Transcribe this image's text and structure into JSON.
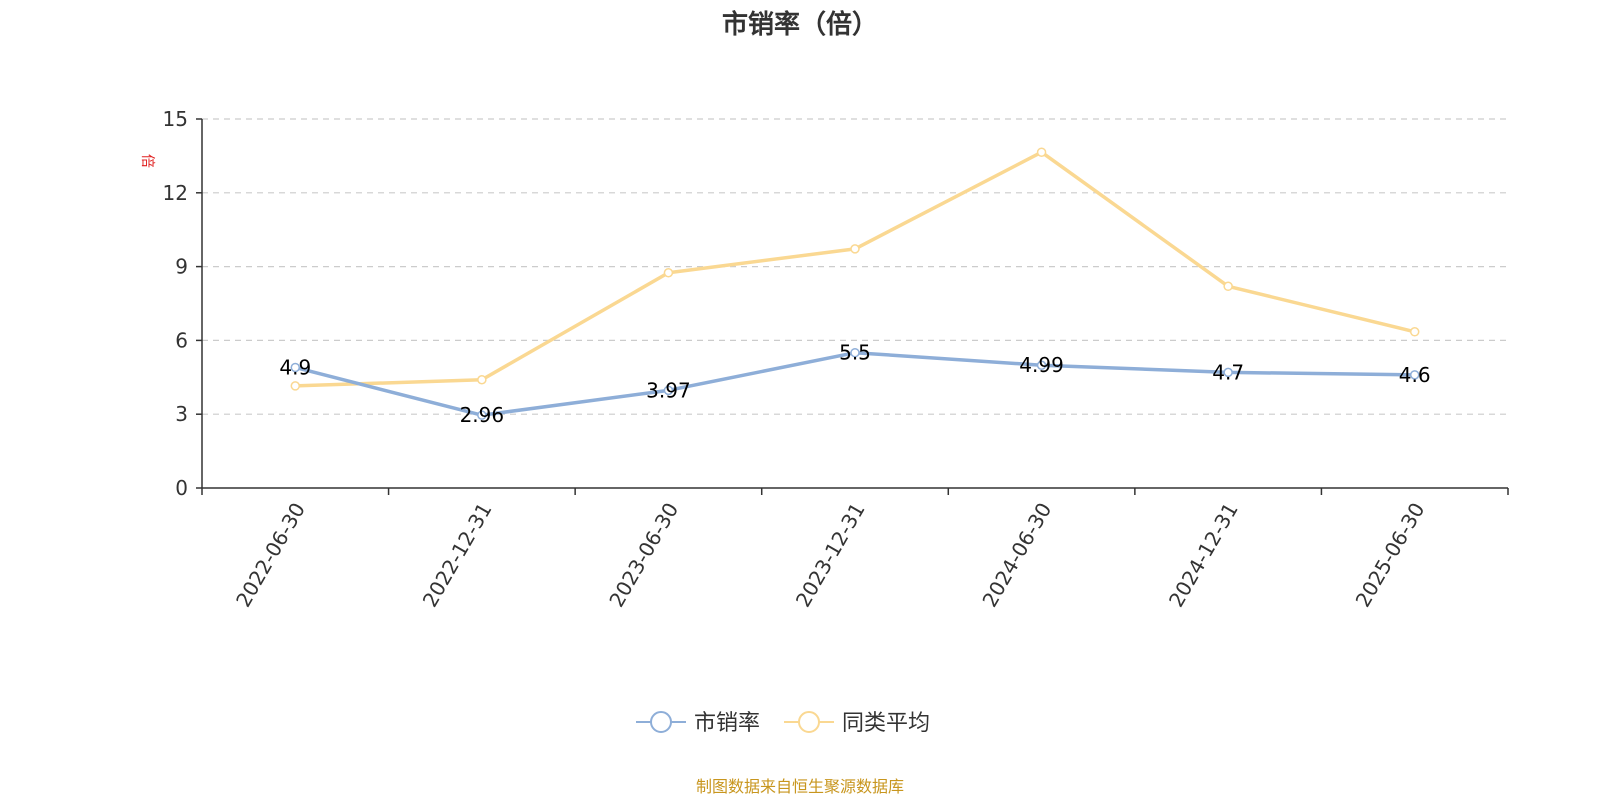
{
  "chart_data": {
    "type": "line",
    "title": "市销率（倍）",
    "ylabel": "倍",
    "xlabel": "",
    "categories": [
      "2022-06-30",
      "2022-12-31",
      "2023-06-30",
      "2023-12-31",
      "2024-06-30",
      "2024-12-31",
      "2025-06-30"
    ],
    "ylim": [
      0,
      15
    ],
    "yticks": [
      0,
      3,
      6,
      9,
      12,
      15
    ],
    "grid": true,
    "legend_position": "bottom-center",
    "series": [
      {
        "name": "市销率",
        "values": [
          4.9,
          2.96,
          3.97,
          5.5,
          4.99,
          4.7,
          4.6
        ],
        "labels": [
          "4.9",
          "2.96",
          "3.97",
          "5.5",
          "4.99",
          "4.7",
          "4.6"
        ],
        "color": "#8eaed8"
      },
      {
        "name": "同类平均",
        "values": [
          4.15,
          4.4,
          8.75,
          9.72,
          13.65,
          8.2,
          6.35
        ],
        "color": "#fad892"
      }
    ]
  },
  "source_note": "制图数据来自恒生聚源数据库",
  "colors": {
    "axis": "#333333",
    "grid": "#cccccc",
    "ylabel": "#e02020",
    "source": "#c8961e"
  }
}
